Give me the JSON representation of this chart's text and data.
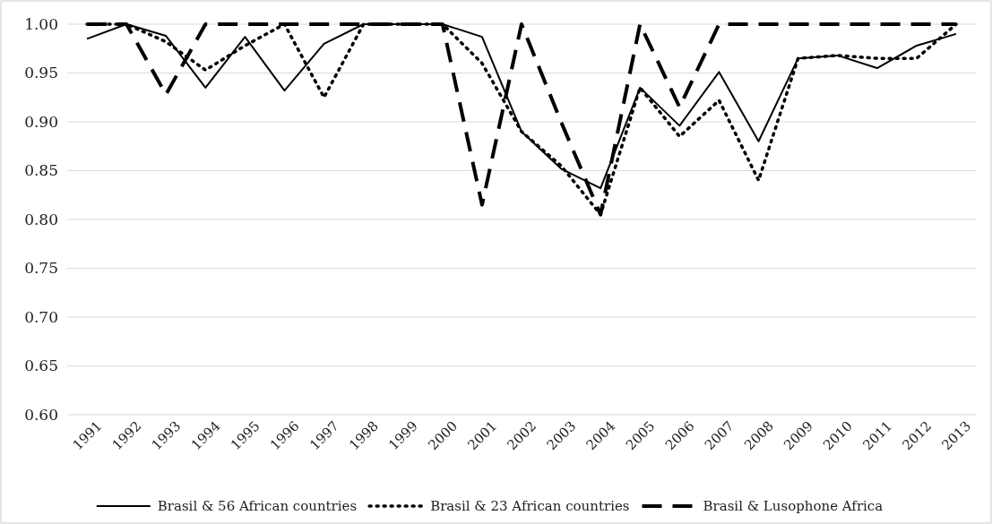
{
  "chart_data": {
    "type": "line",
    "categories": [
      "1991",
      "1992",
      "1993",
      "1994",
      "1995",
      "1996",
      "1997",
      "1998",
      "1999",
      "2000",
      "2001",
      "2002",
      "2003",
      "2004",
      "2005",
      "2006",
      "2007",
      "2008",
      "2009",
      "2010",
      "2011",
      "2012",
      "2013"
    ],
    "series": [
      {
        "name": "Brasil & 56 African countries",
        "color": "#000000",
        "line_style": "solid",
        "values": [
          0.985,
          1.0,
          0.988,
          0.935,
          0.987,
          0.932,
          0.98,
          1.0,
          1.0,
          1.0,
          0.987,
          0.89,
          0.852,
          0.832,
          0.935,
          0.896,
          0.951,
          0.88,
          0.965,
          0.968,
          0.955,
          0.978,
          0.99
        ]
      },
      {
        "name": "Brasil & 23 African countries",
        "color": "#000000",
        "line_style": "dotted",
        "values": [
          1.0,
          1.0,
          0.982,
          0.953,
          0.978,
          1.0,
          0.925,
          1.0,
          1.0,
          1.0,
          0.96,
          0.89,
          0.855,
          0.805,
          0.935,
          0.885,
          0.922,
          0.84,
          0.965,
          0.968,
          0.965,
          0.965,
          1.0
        ]
      },
      {
        "name": "Brasil & Lusophone Africa",
        "color": "#000000",
        "line_style": "dashed",
        "values": [
          1.0,
          1.0,
          0.928,
          1.0,
          1.0,
          1.0,
          1.0,
          1.0,
          1.0,
          1.0,
          0.815,
          1.0,
          0.9,
          0.805,
          1.0,
          0.915,
          1.0,
          1.0,
          1.0,
          1.0,
          1.0,
          1.0,
          1.0
        ]
      }
    ],
    "ylim": [
      0.6,
      1.0
    ],
    "yticks": [
      {
        "value": 0.6,
        "label": "0.60"
      },
      {
        "value": 0.65,
        "label": "0.65"
      },
      {
        "value": 0.7,
        "label": "0.70"
      },
      {
        "value": 0.75,
        "label": "0.75"
      },
      {
        "value": 0.8,
        "label": "0.80"
      },
      {
        "value": 0.85,
        "label": "0.85"
      },
      {
        "value": 0.9,
        "label": "0.90"
      },
      {
        "value": 0.95,
        "label": "0.95"
      },
      {
        "value": 1.0,
        "label": "1.00"
      }
    ],
    "grid": "y",
    "legend": "bottom",
    "marker": "none"
  }
}
